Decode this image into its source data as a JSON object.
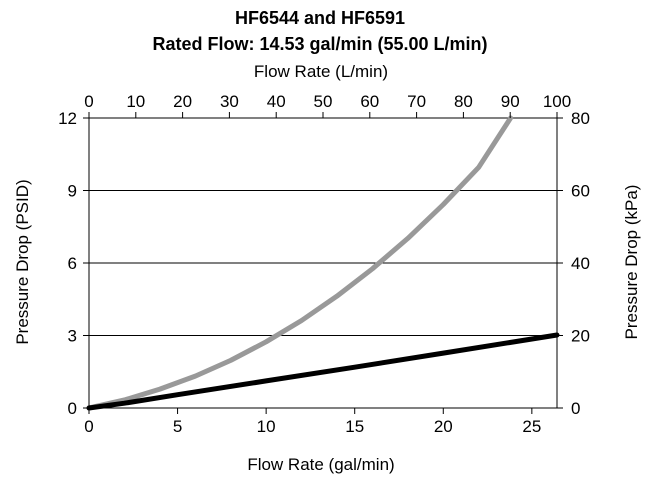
{
  "chart_data": {
    "type": "line",
    "title": "HF6544 and HF6591",
    "subtitle": "Rated Flow: 14.53 gal/min (55.00 L/min)",
    "xlabel": "Flow Rate (gal/min)",
    "x2label": "Flow Rate (L/min)",
    "ylabel": "Pressure Drop (PSID)",
    "y2label": "Pressure Drop (kPa)",
    "xlim": [
      0,
      26.42
    ],
    "ylim": [
      0,
      12
    ],
    "x2lim": [
      0,
      100
    ],
    "y2lim": [
      0,
      80
    ],
    "xticks": [
      "0",
      "5",
      "10",
      "15",
      "20",
      "25"
    ],
    "yticks": [
      "0",
      "3",
      "6",
      "9",
      "12"
    ],
    "x2ticks": [
      "0",
      "10",
      "20",
      "30",
      "40",
      "50",
      "60",
      "70",
      "80",
      "90",
      "100"
    ],
    "y2ticks": [
      "0",
      "20",
      "40",
      "60",
      "80"
    ],
    "grid": "horizontal",
    "series": [
      {
        "color": "#999999",
        "x": [
          0,
          2,
          4,
          6,
          8,
          10,
          12,
          14,
          16,
          18,
          20,
          22,
          23.8
        ],
        "y": [
          0,
          0.33,
          0.78,
          1.32,
          1.97,
          2.74,
          3.62,
          4.63,
          5.76,
          7.02,
          8.42,
          9.96,
          12.0
        ]
      },
      {
        "color": "#000000",
        "x": [
          0,
          2,
          5,
          10,
          15,
          20,
          26.42
        ],
        "y": [
          0,
          0.2,
          0.55,
          1.12,
          1.69,
          2.27,
          3.02
        ]
      }
    ]
  }
}
